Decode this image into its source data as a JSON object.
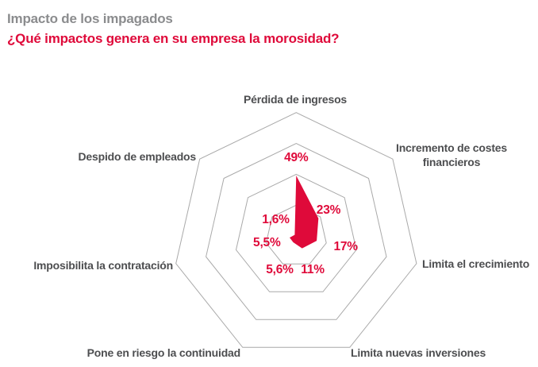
{
  "header": {
    "kicker": "Impacto de los impagados",
    "title": "¿Qué impactos genera en su empresa la morosidad?"
  },
  "colors": {
    "accent_red": "#df0a3a",
    "grid_gray": "#a9a9a9",
    "axis_label_gray": "#4d4e50",
    "kicker_gray": "#8b8c8e",
    "background": "#ffffff"
  },
  "chart_data": {
    "type": "radar",
    "shape": "heptagon",
    "title": "Impacto de los impagados",
    "subtitle": "¿Qué impactos genera en su empresa la morosidad?",
    "grid_on": true,
    "legend": "none",
    "scale": {
      "min_pct": 0,
      "max_pct": 100,
      "gridline_levels_pct": [
        25,
        50,
        75,
        100
      ]
    },
    "series_color": "#df0a3a",
    "axes": [
      {
        "label": "Pérdida de ingresos",
        "value_pct": 49,
        "value_label": "49%"
      },
      {
        "label": "Incremento de costes financieros",
        "value_pct": 23,
        "value_label": "23%"
      },
      {
        "label": "Limita el crecimiento",
        "value_pct": 17,
        "value_label": "17%"
      },
      {
        "label": "Limita nuevas inversiones",
        "value_pct": 11,
        "value_label": "11%"
      },
      {
        "label": "Pone en riesgo la continuidad",
        "value_pct": 5.6,
        "value_label": "5,6%"
      },
      {
        "label": "Imposibilita la contratación",
        "value_pct": 5.5,
        "value_label": "5,5%"
      },
      {
        "label": "Despido de empleados",
        "value_pct": 1.6,
        "value_label": "1,6%"
      }
    ]
  }
}
